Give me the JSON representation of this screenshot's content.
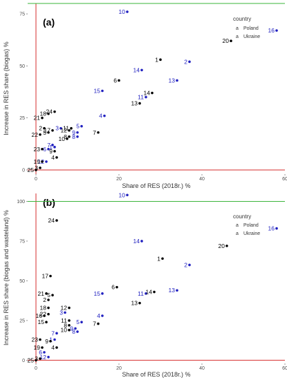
{
  "chart_data": [
    {
      "type": "scatter",
      "panel_label": "(a)",
      "title": "",
      "xlabel": "Share of RES (2018r.) %",
      "ylabel": "Increase in RES share (biogas) %",
      "xlim": [
        -2,
        60
      ],
      "ylim": [
        -2,
        80
      ],
      "xticks": [
        0,
        20,
        40,
        60
      ],
      "yticks": [
        0,
        25,
        50,
        75
      ],
      "hline": 0,
      "vline": 0,
      "top_line": 80,
      "grid": false,
      "legend": {
        "title": "country",
        "position": "top-right",
        "entries": [
          {
            "name": "Poland",
            "color": "#2020c0"
          },
          {
            "name": "Ukraine",
            "color": "#000000"
          }
        ]
      },
      "series": [
        {
          "name": "Poland",
          "color": "#2020c0",
          "points": [
            {
              "label": "1",
              "x": 4.5,
              "y": 11
            },
            {
              "label": "2",
              "x": 37,
              "y": 52
            },
            {
              "label": "3",
              "x": 6,
              "y": 20
            },
            {
              "label": "4",
              "x": 16.5,
              "y": 26
            },
            {
              "label": "5",
              "x": 11,
              "y": 21
            },
            {
              "label": "6",
              "x": 3,
              "y": 10
            },
            {
              "label": "7",
              "x": 4,
              "y": 12
            },
            {
              "label": "8",
              "x": 10,
              "y": 16
            },
            {
              "label": "9",
              "x": 10,
              "y": 18
            },
            {
              "label": "10",
              "x": 22,
              "y": 76
            },
            {
              "label": "11",
              "x": 26.5,
              "y": 35
            },
            {
              "label": "12",
              "x": 2.5,
              "y": 4
            },
            {
              "label": "13",
              "x": 34,
              "y": 43
            },
            {
              "label": "14",
              "x": 25.5,
              "y": 48
            },
            {
              "label": "15",
              "x": 16,
              "y": 38
            },
            {
              "label": "16",
              "x": 58,
              "y": 67
            }
          ]
        },
        {
          "name": "Ukraine",
          "color": "#000000",
          "points": [
            {
              "label": "1",
              "x": 30,
              "y": 53
            },
            {
              "label": "2",
              "x": 2,
              "y": 20
            },
            {
              "label": "3",
              "x": 1,
              "y": 1
            },
            {
              "label": "4",
              "x": 5,
              "y": 6
            },
            {
              "label": "5",
              "x": 3,
              "y": 18
            },
            {
              "label": "6",
              "x": 20,
              "y": 43
            },
            {
              "label": "7",
              "x": 15,
              "y": 18
            },
            {
              "label": "8",
              "x": 8,
              "y": 16
            },
            {
              "label": "9",
              "x": 4.5,
              "y": 9
            },
            {
              "label": "10",
              "x": 7.5,
              "y": 15
            },
            {
              "label": "11",
              "x": 8.5,
              "y": 20
            },
            {
              "label": "12",
              "x": 8,
              "y": 19
            },
            {
              "label": "13",
              "x": 25,
              "y": 32
            },
            {
              "label": "14",
              "x": 28,
              "y": 37
            },
            {
              "label": "17",
              "x": 4,
              "y": 19
            },
            {
              "label": "18",
              "x": 3,
              "y": 27
            },
            {
              "label": "19",
              "x": 1.5,
              "y": 4
            },
            {
              "label": "20",
              "x": 47,
              "y": 62
            },
            {
              "label": "21",
              "x": 1.5,
              "y": 25
            },
            {
              "label": "22",
              "x": 1,
              "y": 17
            },
            {
              "label": "23",
              "x": 1.5,
              "y": 10
            },
            {
              "label": "24",
              "x": 4.5,
              "y": 28
            },
            {
              "label": "25",
              "x": 0,
              "y": 0
            }
          ]
        }
      ]
    },
    {
      "type": "scatter",
      "panel_label": "(b)",
      "title": "",
      "xlabel": "Share of RES (2018r.) %",
      "ylabel": "Increase in RES share (biogas and wasteland) %",
      "xlim": [
        -2,
        60
      ],
      "ylim": [
        -2,
        105
      ],
      "xticks": [
        0,
        20,
        40,
        60
      ],
      "yticks": [
        0,
        25,
        50,
        75,
        100
      ],
      "hline": 0,
      "vline": 0,
      "top_line": 100,
      "grid": false,
      "legend": {
        "title": "country",
        "position": "top-right",
        "entries": [
          {
            "name": "Poland",
            "color": "#2020c0"
          },
          {
            "name": "Ukraine",
            "color": "#000000"
          }
        ]
      },
      "series": [
        {
          "name": "Poland",
          "color": "#2020c0",
          "points": [
            {
              "label": "1",
              "x": 4.5,
              "y": 13
            },
            {
              "label": "2",
              "x": 37,
              "y": 60
            },
            {
              "label": "3",
              "x": 7,
              "y": 30
            },
            {
              "label": "4",
              "x": 16,
              "y": 28
            },
            {
              "label": "5",
              "x": 11,
              "y": 24
            },
            {
              "label": "6",
              "x": 2,
              "y": 5
            },
            {
              "label": "7",
              "x": 5,
              "y": 17
            },
            {
              "label": "8",
              "x": 10,
              "y": 18
            },
            {
              "label": "9",
              "x": 9.5,
              "y": 20
            },
            {
              "label": "10",
              "x": 22,
              "y": 104
            },
            {
              "label": "11",
              "x": 26.5,
              "y": 42
            },
            {
              "label": "12",
              "x": 3,
              "y": 2
            },
            {
              "label": "13",
              "x": 34,
              "y": 44
            },
            {
              "label": "14",
              "x": 25.5,
              "y": 75
            },
            {
              "label": "15",
              "x": 16,
              "y": 42
            },
            {
              "label": "16",
              "x": 58,
              "y": 83
            }
          ]
        },
        {
          "name": "Ukraine",
          "color": "#000000",
          "points": [
            {
              "label": "1",
              "x": 30.5,
              "y": 64
            },
            {
              "label": "2",
              "x": 3,
              "y": 38
            },
            {
              "label": "3",
              "x": 1,
              "y": 1
            },
            {
              "label": "4",
              "x": 5,
              "y": 8
            },
            {
              "label": "5",
              "x": 4,
              "y": 41
            },
            {
              "label": "6",
              "x": 19.5,
              "y": 46
            },
            {
              "label": "7",
              "x": 15,
              "y": 23
            },
            {
              "label": "8",
              "x": 8,
              "y": 22
            },
            {
              "label": "9",
              "x": 3.5,
              "y": 12
            },
            {
              "label": "10",
              "x": 8,
              "y": 19
            },
            {
              "label": "11",
              "x": 8,
              "y": 25
            },
            {
              "label": "12",
              "x": 8,
              "y": 33
            },
            {
              "label": "13",
              "x": 25,
              "y": 36
            },
            {
              "label": "14",
              "x": 28.5,
              "y": 43
            },
            {
              "label": "15",
              "x": 2.5,
              "y": 24
            },
            {
              "label": "16",
              "x": 2,
              "y": 28
            },
            {
              "label": "17",
              "x": 3.5,
              "y": 53
            },
            {
              "label": "18",
              "x": 3,
              "y": 33
            },
            {
              "label": "19",
              "x": 1.5,
              "y": 8
            },
            {
              "label": "20",
              "x": 46,
              "y": 72
            },
            {
              "label": "21",
              "x": 2.5,
              "y": 42
            },
            {
              "label": "22",
              "x": 3,
              "y": 29
            },
            {
              "label": "23",
              "x": 1,
              "y": 13
            },
            {
              "label": "24",
              "x": 5,
              "y": 88
            },
            {
              "label": "25",
              "x": 0,
              "y": 0
            }
          ]
        }
      ]
    }
  ]
}
